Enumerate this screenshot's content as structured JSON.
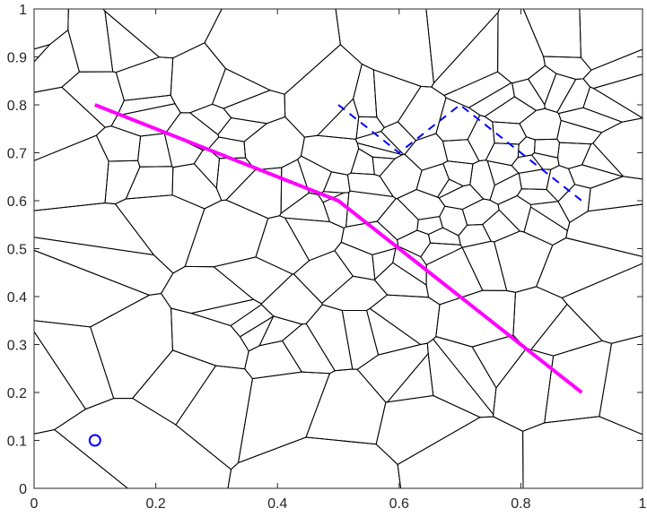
{
  "chart_data": {
    "type": "line",
    "title": "",
    "xlabel": "",
    "ylabel": "",
    "xlim": [
      0,
      1
    ],
    "ylim": [
      0,
      1
    ],
    "x_ticks": [
      "0",
      "0.2",
      "0.4",
      "0.6",
      "0.8",
      "1"
    ],
    "y_ticks": [
      "0",
      "0.1",
      "0.2",
      "0.3",
      "0.4",
      "0.5",
      "0.6",
      "0.7",
      "0.8",
      "0.9",
      "1"
    ],
    "grid": false,
    "legend": "none",
    "series": [
      {
        "style": "solid",
        "color": "#ff00ff",
        "x": [
          0.1,
          0.5,
          0.9
        ],
        "y": [
          0.8,
          0.6,
          0.2
        ]
      },
      {
        "style": "dashed",
        "color": "#0000ff",
        "x": [
          0.5,
          0.6,
          0.7,
          0.9
        ],
        "y": [
          0.8,
          0.7,
          0.8,
          0.6
        ]
      },
      {
        "style": "marker-circle",
        "color": "#0000ff",
        "x": [
          0.1
        ],
        "y": [
          0.1
        ]
      }
    ],
    "background_mesh": "voronoi-polygons-black-outline"
  }
}
